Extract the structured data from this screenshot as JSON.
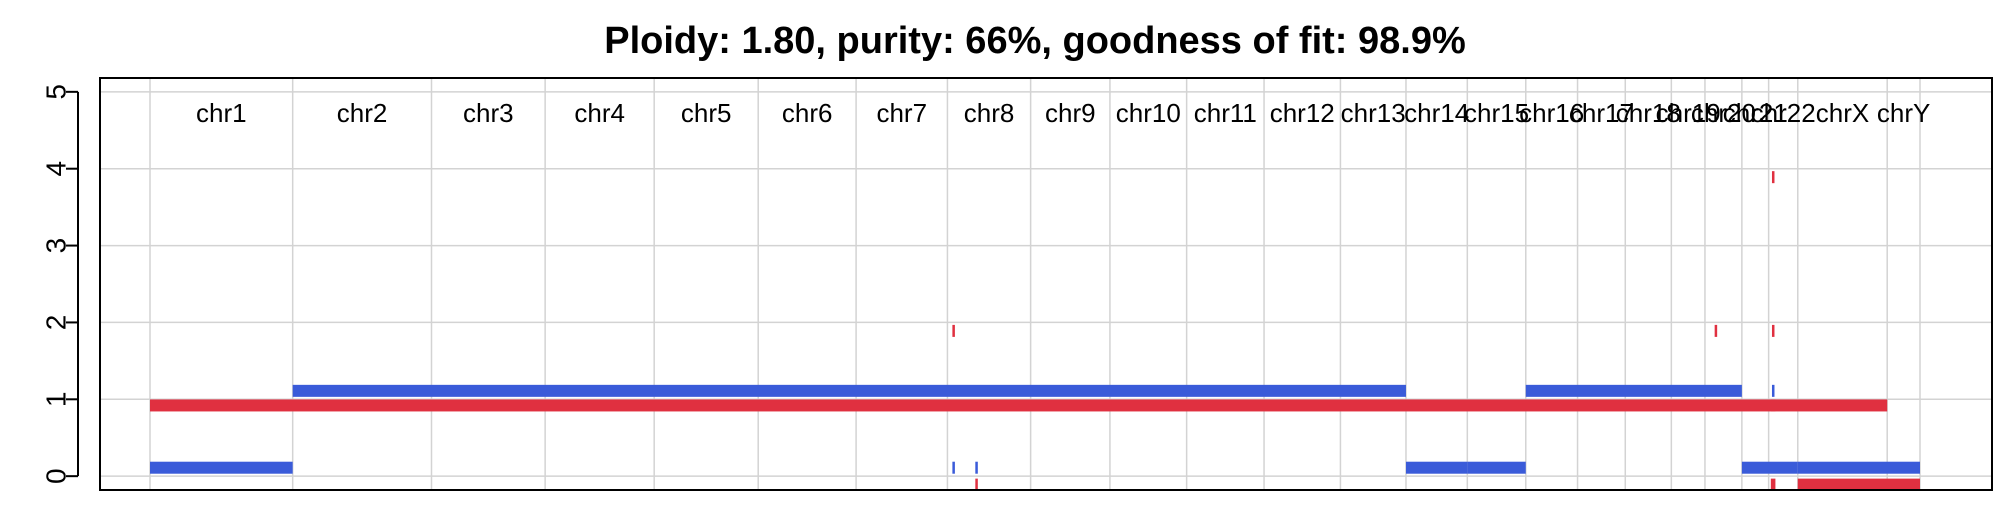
{
  "chart_data": {
    "type": "bar",
    "title": "Ploidy: 1.80, purity: 66%, goodness of fit: 98.9%",
    "xlabel": "",
    "ylabel": "",
    "ylim": [
      -0.18,
      5.18
    ],
    "yticks": [
      "0",
      "1",
      "2",
      "3",
      "4",
      "5"
    ],
    "yticks_values": [
      0,
      1,
      2,
      3,
      4,
      5
    ],
    "grid": true,
    "chromosomes": [
      {
        "name": "chr1",
        "start": 0.0,
        "end": 248.96
      },
      {
        "name": "chr2",
        "start": 248.96,
        "end": 491.15
      },
      {
        "name": "chr3",
        "start": 491.15,
        "end": 689.45
      },
      {
        "name": "chr4",
        "start": 689.45,
        "end": 879.66
      },
      {
        "name": "chr5",
        "start": 879.66,
        "end": 1061.19
      },
      {
        "name": "chr6",
        "start": 1061.19,
        "end": 1232.0
      },
      {
        "name": "chr7",
        "start": 1232.0,
        "end": 1391.35
      },
      {
        "name": "chr8",
        "start": 1391.35,
        "end": 1536.49
      },
      {
        "name": "chr9",
        "start": 1536.49,
        "end": 1674.88
      },
      {
        "name": "chr10",
        "start": 1674.88,
        "end": 1808.68
      },
      {
        "name": "chr11",
        "start": 1808.68,
        "end": 1943.77
      },
      {
        "name": "chr12",
        "start": 1943.77,
        "end": 2077.05
      },
      {
        "name": "chr13",
        "start": 2077.05,
        "end": 2191.41
      },
      {
        "name": "chr14",
        "start": 2191.41,
        "end": 2298.45
      },
      {
        "name": "chr15",
        "start": 2298.45,
        "end": 2400.44
      },
      {
        "name": "chr16",
        "start": 2400.44,
        "end": 2490.78
      },
      {
        "name": "chr17",
        "start": 2490.78,
        "end": 2574.04
      },
      {
        "name": "chr18",
        "start": 2574.04,
        "end": 2654.42
      },
      {
        "name": "chr19",
        "start": 2654.42,
        "end": 2713.04
      },
      {
        "name": "chr20",
        "start": 2713.04,
        "end": 2777.48
      },
      {
        "name": "chr21",
        "start": 2777.48,
        "end": 2824.19
      },
      {
        "name": "chr22",
        "start": 2824.19,
        "end": 2875.0
      },
      {
        "name": "chrX",
        "start": 2875.0,
        "end": 3031.04
      },
      {
        "name": "chrY",
        "start": 3031.04,
        "end": 3088.27
      }
    ],
    "series": [
      {
        "name": "",
        "color": "#e03040",
        "segments": [
          {
            "start": 0.0,
            "end": 3031.04,
            "value": 0.92
          },
          {
            "start": 1400.0,
            "end": 1402.0,
            "value": 1.89
          },
          {
            "start": 1440.0,
            "end": 1442.0,
            "value": -0.11
          },
          {
            "start": 2730.0,
            "end": 2732.0,
            "value": 1.89
          },
          {
            "start": 2830.0,
            "end": 2832.0,
            "value": 1.89
          },
          {
            "start": 2830.0,
            "end": 2832.0,
            "value": 3.89
          },
          {
            "start": 2828.0,
            "end": 2836.0,
            "value": 0.92
          },
          {
            "start": 2828.0,
            "end": 2836.0,
            "value": -0.11
          },
          {
            "start": 2875.0,
            "end": 3088.27,
            "value": -0.11
          }
        ]
      },
      {
        "name": "",
        "color": "#3a5bd9",
        "segments": [
          {
            "start": 0.0,
            "end": 248.96,
            "value": 0.11
          },
          {
            "start": 248.96,
            "end": 2191.41,
            "value": 1.11
          },
          {
            "start": 1400.0,
            "end": 1402.0,
            "value": 0.11
          },
          {
            "start": 1440.0,
            "end": 1442.0,
            "value": 0.11
          },
          {
            "start": 2191.41,
            "end": 2298.45,
            "value": 0.11
          },
          {
            "start": 2298.45,
            "end": 2400.44,
            "value": 0.11
          },
          {
            "start": 2400.44,
            "end": 2777.48,
            "value": 1.11
          },
          {
            "start": 2777.48,
            "end": 2875.0,
            "value": 0.11
          },
          {
            "start": 2830.0,
            "end": 2832.0,
            "value": 1.11
          },
          {
            "start": 2875.0,
            "end": 3088.27,
            "value": 0.11
          }
        ]
      }
    ]
  }
}
